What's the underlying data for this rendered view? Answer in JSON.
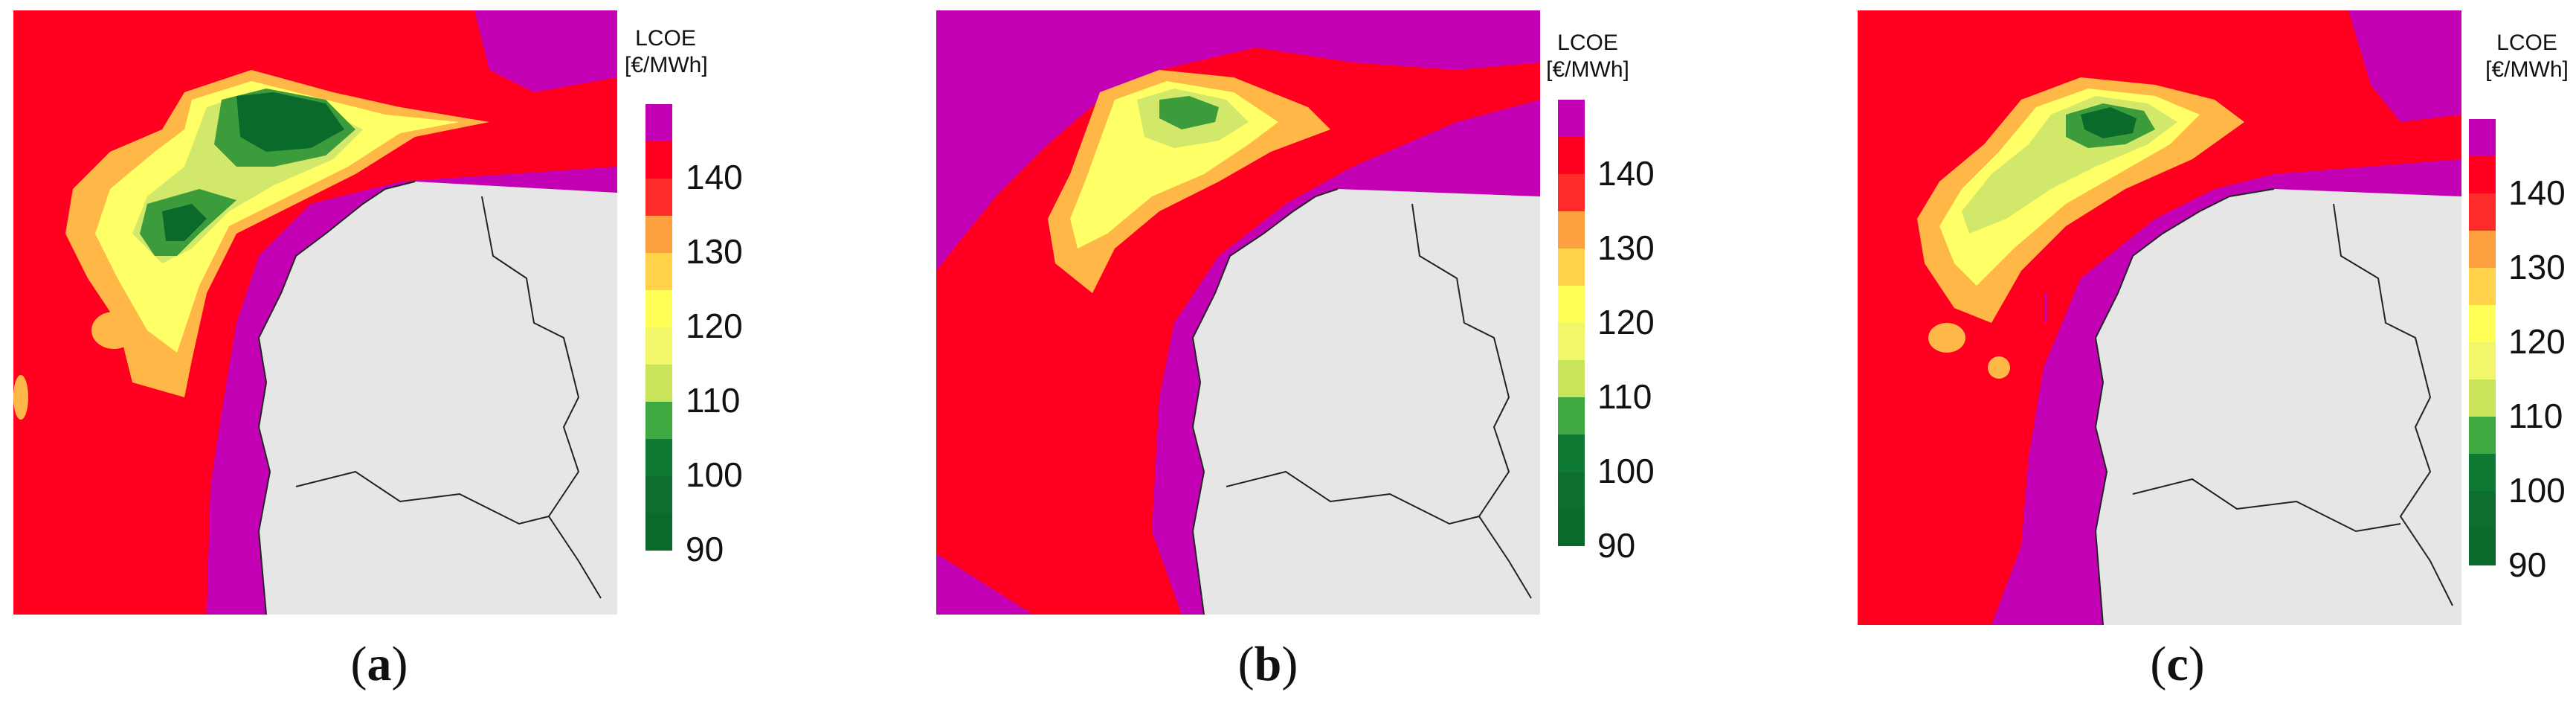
{
  "colorbar": {
    "title_line1": "LCOE",
    "title_line2": "[€/MWh]",
    "ticks": [
      "140",
      "130",
      "120",
      "110",
      "100",
      "90"
    ],
    "bands": [
      {
        "range": ">145",
        "color": "#c400b4"
      },
      {
        "range": "140-145",
        "color": "#ff0020"
      },
      {
        "range": "135-140",
        "color": "#ff2a2a"
      },
      {
        "range": "130-135",
        "color": "#ffa040"
      },
      {
        "range": "125-130",
        "color": "#ffd24a"
      },
      {
        "range": "120-125",
        "color": "#ffff55"
      },
      {
        "range": "115-120",
        "color": "#f2f76a"
      },
      {
        "range": "110-115",
        "color": "#c9e45a"
      },
      {
        "range": "105-110",
        "color": "#3fa840"
      },
      {
        "range": "100-105",
        "color": "#0f7a34"
      },
      {
        "range": "95-100",
        "color": "#0d6e2f"
      },
      {
        "range": "90-95",
        "color": "#0a6a2c"
      }
    ]
  },
  "colors": {
    "land": "#e6e6e6",
    "sea_high": "#c400b4",
    "red": "#ff0020",
    "orange": "#ffb848",
    "yellow": "#ffff66",
    "lightgreen": "#d2e86a",
    "green": "#3c9c3c",
    "darkgreen": "#0a6a2c"
  },
  "panels": [
    {
      "id": "a",
      "caption_open": "(",
      "caption_letter": "a",
      "caption_close": ")"
    },
    {
      "id": "b",
      "caption_open": "(",
      "caption_letter": "b",
      "caption_close": ")"
    },
    {
      "id": "c",
      "caption_open": "(",
      "caption_letter": "c",
      "caption_close": ")"
    }
  ]
}
